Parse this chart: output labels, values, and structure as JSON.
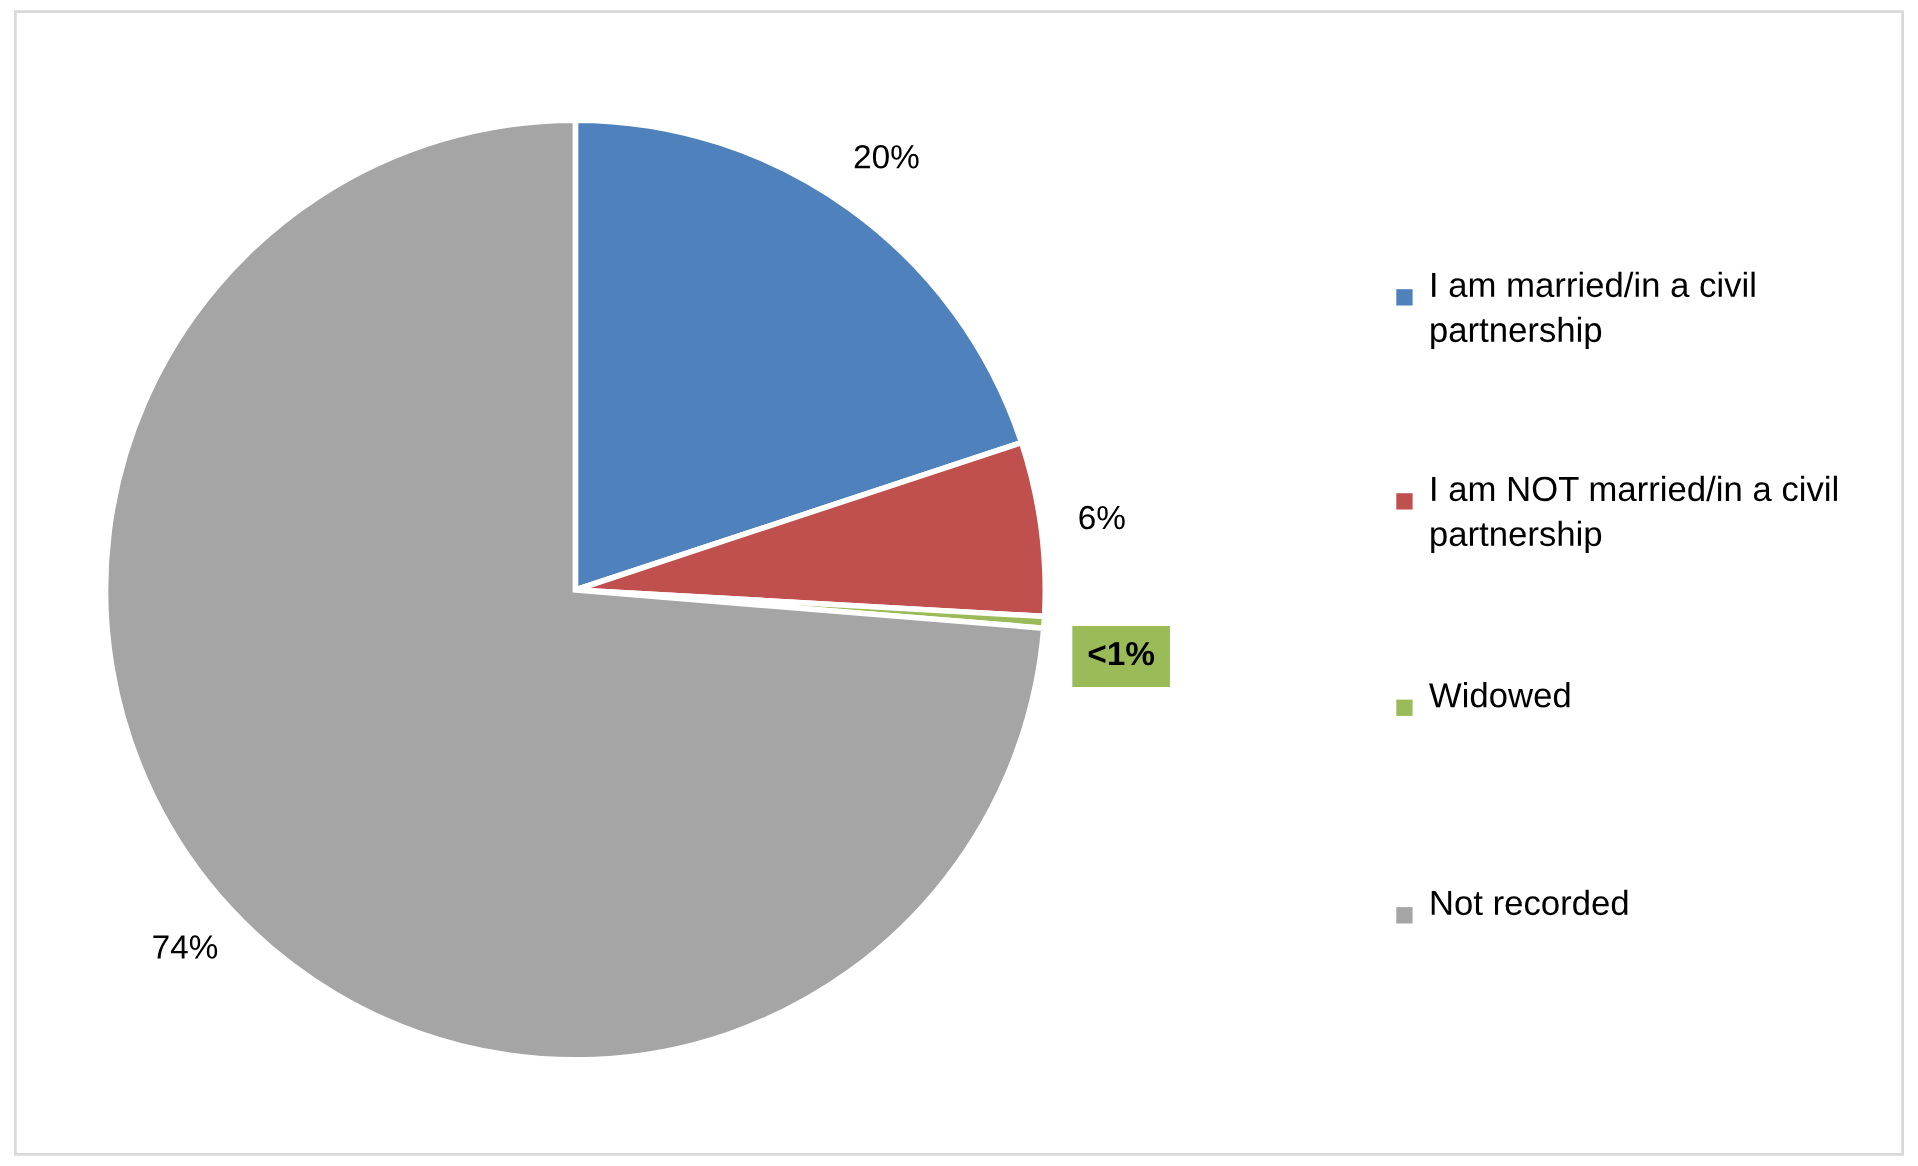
{
  "chart_data": {
    "type": "pie",
    "categories": [
      "I am married/in a civil partnership",
      "I am NOT married/in a civil partnership",
      "Widowed",
      "Not recorded"
    ],
    "values": [
      20,
      6,
      0.4,
      74
    ],
    "value_labels": [
      "20%",
      "6%",
      "<1%",
      "74%"
    ],
    "colors": [
      "#4f81bd",
      "#c0504d",
      "#9bbb59",
      "#a5a5a5"
    ],
    "legend": "right"
  }
}
